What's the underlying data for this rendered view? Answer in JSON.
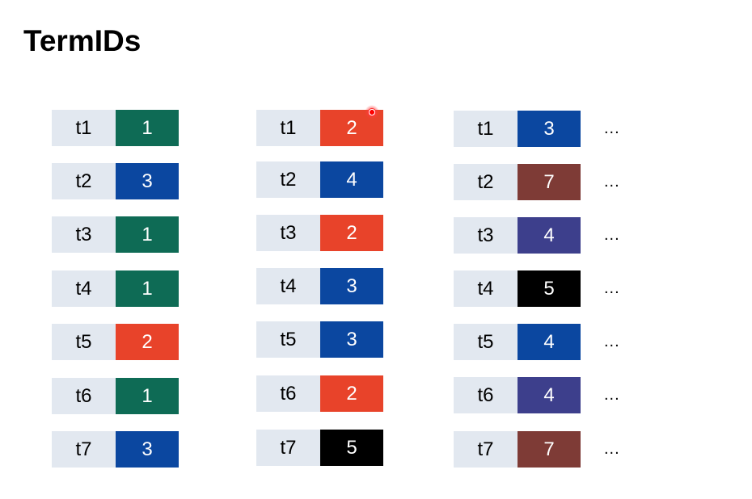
{
  "title": "TermIDs",
  "colors": {
    "term_bg": "#e2e8f0",
    "1": "#0e6b55",
    "2": "#e8432a",
    "3": "#0b47a0",
    "4_mid": "#0b47a0",
    "4_right": "#3d3f8c",
    "5": "#000000",
    "7": "#7e3b36"
  },
  "columns": [
    {
      "rows": [
        {
          "term": "t1",
          "id": "1",
          "color": "#0e6b55"
        },
        {
          "term": "t2",
          "id": "3",
          "color": "#0b47a0"
        },
        {
          "term": "t3",
          "id": "1",
          "color": "#0e6b55"
        },
        {
          "term": "t4",
          "id": "1",
          "color": "#0e6b55"
        },
        {
          "term": "t5",
          "id": "2",
          "color": "#e8432a"
        },
        {
          "term": "t6",
          "id": "1",
          "color": "#0e6b55"
        },
        {
          "term": "t7",
          "id": "3",
          "color": "#0b47a0"
        }
      ]
    },
    {
      "rows": [
        {
          "term": "t1",
          "id": "2",
          "color": "#e8432a"
        },
        {
          "term": "t2",
          "id": "4",
          "color": "#0b47a0"
        },
        {
          "term": "t3",
          "id": "2",
          "color": "#e8432a"
        },
        {
          "term": "t4",
          "id": "3",
          "color": "#0b47a0"
        },
        {
          "term": "t5",
          "id": "3",
          "color": "#0b47a0"
        },
        {
          "term": "t6",
          "id": "2",
          "color": "#e8432a"
        },
        {
          "term": "t7",
          "id": "5",
          "color": "#000000"
        }
      ]
    },
    {
      "rows": [
        {
          "term": "t1",
          "id": "3",
          "color": "#0b47a0",
          "more": "..."
        },
        {
          "term": "t2",
          "id": "7",
          "color": "#7e3b36",
          "more": "..."
        },
        {
          "term": "t3",
          "id": "4",
          "color": "#3d3f8c",
          "more": "..."
        },
        {
          "term": "t4",
          "id": "5",
          "color": "#000000",
          "more": "..."
        },
        {
          "term": "t5",
          "id": "4",
          "color": "#0b47a0",
          "more": "..."
        },
        {
          "term": "t6",
          "id": "4",
          "color": "#3d3f8c",
          "more": "..."
        },
        {
          "term": "t7",
          "id": "7",
          "color": "#7e3b36",
          "more": "..."
        }
      ]
    }
  ]
}
